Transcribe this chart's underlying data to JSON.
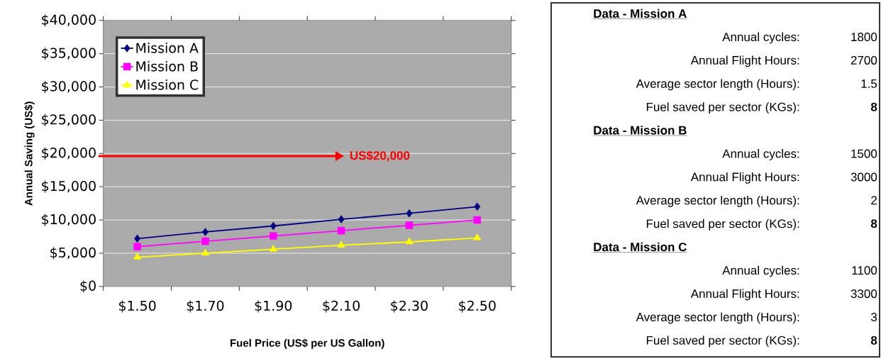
{
  "chart_data": [
    {
      "type": "line",
      "xlabel": "Fuel Price (US$ per US Gallon)",
      "ylabel": "Annual Saving (US$)",
      "categories": [
        "$1.50",
        "$1.70",
        "$1.90",
        "$2.10",
        "$2.30",
        "$2.50"
      ],
      "series": [
        {
          "name": "Mission A",
          "color": "#000080",
          "marker": "diamond",
          "values": [
            7200,
            8200,
            9100,
            10100,
            11000,
            12000
          ]
        },
        {
          "name": "Mission B",
          "color": "#ff00ff",
          "marker": "square",
          "values": [
            6000,
            6800,
            7600,
            8400,
            9200,
            10000
          ]
        },
        {
          "name": "Mission C",
          "color": "#ffff00",
          "marker": "triangle",
          "values": [
            4400,
            5000,
            5600,
            6200,
            6700,
            7300
          ]
        }
      ],
      "ylim": [
        0,
        40000
      ],
      "yticks": [
        {
          "value": 0,
          "label": "$0"
        },
        {
          "value": 5000,
          "label": "$5,000"
        },
        {
          "value": 10000,
          "label": "$10,000"
        },
        {
          "value": 15000,
          "label": "$15,000"
        },
        {
          "value": 20000,
          "label": "$20,000"
        },
        {
          "value": 25000,
          "label": "$25,000"
        },
        {
          "value": 30000,
          "label": "$30,000"
        },
        {
          "value": 35000,
          "label": "$35,000"
        },
        {
          "value": 40000,
          "label": "$40,000"
        }
      ],
      "annotations": [
        "US$20,000"
      ],
      "grid": "y",
      "legend": "top left"
    },
    {
      "type": "other",
      "annotations": [
        "Data - Mission A",
        "Annual cycles:",
        "1800",
        "Annual Flight Hours:",
        "2700",
        "Average sector length (Hours):",
        "1.5",
        "Fuel saved per sector (KGs):",
        "8",
        "Data - Mission B",
        "Annual cycles:",
        "1500",
        "Annual Flight Hours:",
        "3000",
        "Average sector length (Hours):",
        "2",
        "Fuel saved per sector (KGs):",
        "8",
        "Data - Mission C",
        "Annual cycles:",
        "1100",
        "Annual Flight Hours:",
        "3300",
        "Average sector length (Hours):",
        "3",
        "Fuel saved per sector (KGs):",
        "8"
      ]
    }
  ]
}
